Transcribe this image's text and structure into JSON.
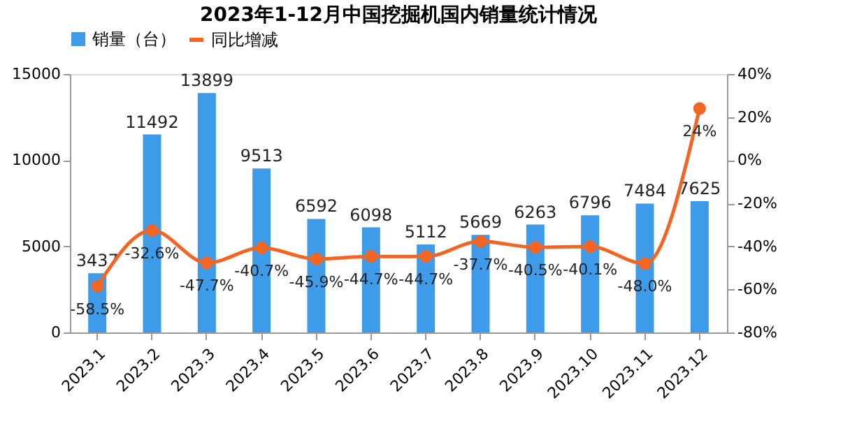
{
  "chart_data": {
    "type": "bar",
    "title": "2023年1-12月中国挖掘机国内销量统计情况",
    "categories": [
      "2023.1",
      "2023.2",
      "2023.3",
      "2023.4",
      "2023.5",
      "2023.6",
      "2023.7",
      "2023.8",
      "2023.9",
      "2023.10",
      "2023.11",
      "2023.12"
    ],
    "series": [
      {
        "name": "销量（台）",
        "color": "#3d9be9",
        "values": [
          3437,
          11492,
          13899,
          9513,
          6592,
          6098,
          5112,
          5669,
          6263,
          6796,
          7484,
          7625
        ]
      },
      {
        "name": "同比增减",
        "type": "line",
        "axis": "y2",
        "color": "#f26522",
        "marker": "circle",
        "values": [
          -58.5,
          -32.6,
          -47.7,
          -40.7,
          -45.9,
          -44.7,
          -44.7,
          -37.7,
          -40.5,
          -40.1,
          -48.0,
          24
        ],
        "value_labels": [
          "-58.5%",
          "-32.6%",
          "-47.7%",
          "-40.7%",
          "-45.9%",
          "-44.7%",
          "-44.7%",
          "-37.7%",
          "-40.5%",
          "-40.1%",
          "-48.0%",
          "24%"
        ]
      }
    ],
    "data_labels": true,
    "ylim": [
      0,
      15000
    ],
    "yticks": [
      0,
      5000,
      10000,
      15000
    ],
    "y2lim": [
      -80,
      40
    ],
    "y2ticks": [
      {
        "value": -80,
        "label": "-80%"
      },
      {
        "value": -60,
        "label": "-60%"
      },
      {
        "value": -40,
        "label": "-40%"
      },
      {
        "value": -20,
        "label": "-20%"
      },
      {
        "value": 0,
        "label": "0%"
      },
      {
        "value": 20,
        "label": "20%"
      },
      {
        "value": 40,
        "label": "40%"
      }
    ],
    "grid": false,
    "legend": "top"
  }
}
